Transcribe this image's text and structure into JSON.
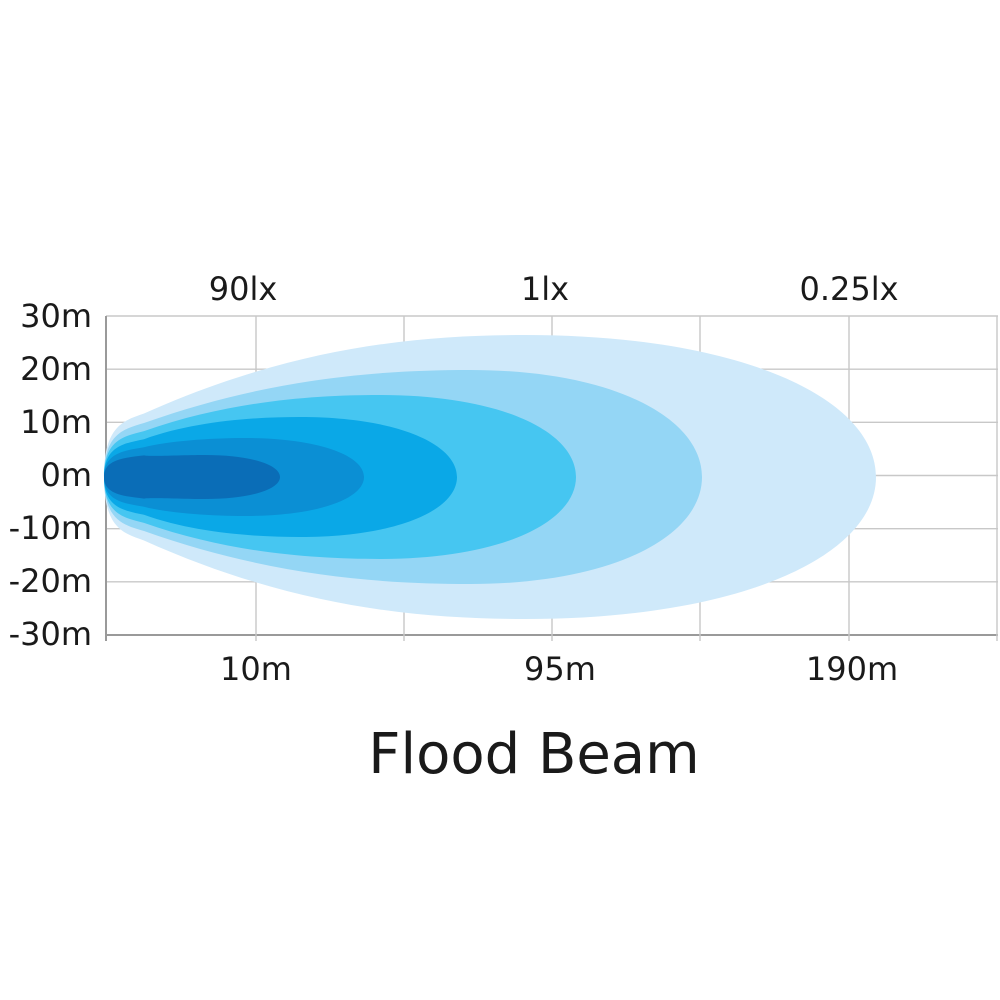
{
  "chart_data": {
    "type": "area",
    "title": "Flood Beam",
    "y_tick_labels": [
      "30m",
      "20m",
      "10m",
      "0m",
      "-10m",
      "-20m",
      "-30m"
    ],
    "x_tick_labels": [
      "10m",
      "95m",
      "190m"
    ],
    "lux_labels": [
      "90lx",
      "1lx",
      "0.25lx"
    ],
    "ylim": [
      -30,
      30
    ],
    "grid": true,
    "contour_colors": [
      "#cfe9fa",
      "#94d6f5",
      "#46c6f1",
      "#0aa8e7",
      "#0b8fd4",
      "#0a6db7"
    ]
  }
}
